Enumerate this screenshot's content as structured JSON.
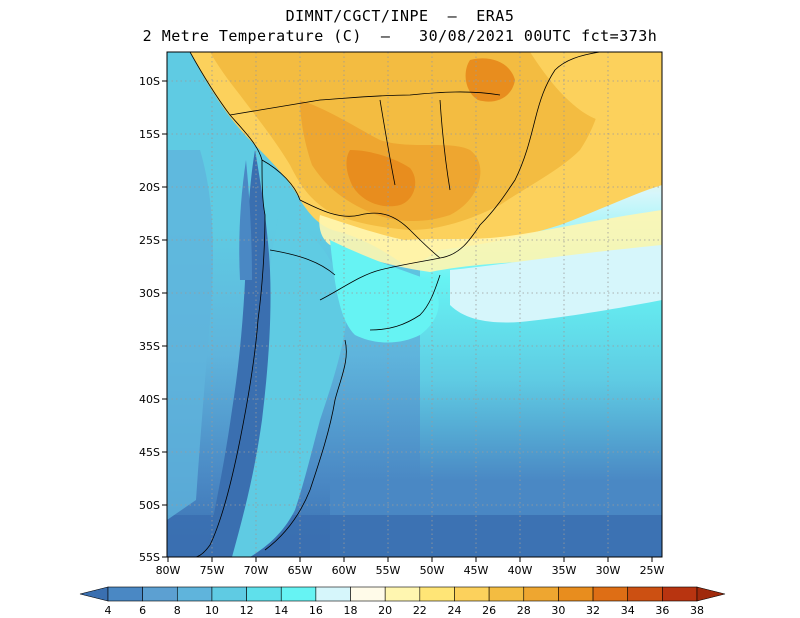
{
  "header": {
    "line1": "DIMNT/CGCT/INPE  —  ERA5",
    "line2": "2 Metre Temperature (C)  —   30/08/2021 00UTC fct=373h"
  },
  "axes": {
    "lat_labels": [
      "10S",
      "15S",
      "20S",
      "25S",
      "30S",
      "35S",
      "40S",
      "45S",
      "50S",
      "55S"
    ],
    "lon_labels": [
      "80W",
      "75W",
      "70W",
      "65W",
      "60W",
      "55W",
      "50W",
      "45W",
      "40W",
      "35W",
      "30W",
      "25W"
    ]
  },
  "colorbar": {
    "labels": [
      "4",
      "6",
      "8",
      "10",
      "12",
      "14",
      "16",
      "18",
      "20",
      "22",
      "24",
      "26",
      "28",
      "30",
      "32",
      "34",
      "36",
      "38"
    ],
    "colors": [
      "#3a6fb0",
      "#4a88c4",
      "#5ca0d2",
      "#5fb4dc",
      "#5fcbe3",
      "#5fe0eb",
      "#66f3f3",
      "#d6f6fb",
      "#fffbe9",
      "#fff6b0",
      "#ffe576",
      "#fcd15c",
      "#f3bc41",
      "#eea630",
      "#e88d1e",
      "#de6e15",
      "#cc5012",
      "#b83410",
      "#a02a0c"
    ]
  },
  "colors": {
    "cold": "#3a6fb0",
    "warm": "#eea630"
  }
}
